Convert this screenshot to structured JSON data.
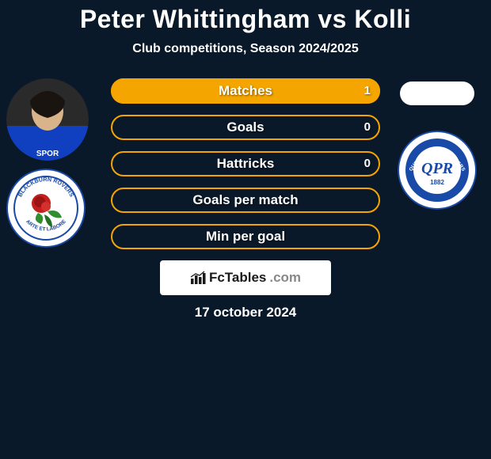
{
  "title": "Peter Whittingham vs Kolli",
  "subtitle": "Club competitions, Season 2024/2025",
  "date": "17 october 2024",
  "colors": {
    "background": "#0a1929",
    "bar_border": "#f5a500",
    "bar_fill": "#f5a500",
    "text": "#ffffff"
  },
  "bars": [
    {
      "label": "Matches",
      "left": "",
      "right": "1",
      "fill_side": "right",
      "fill_pct": 100
    },
    {
      "label": "Goals",
      "left": "",
      "right": "0",
      "fill_side": "none",
      "fill_pct": 0
    },
    {
      "label": "Hattricks",
      "left": "",
      "right": "0",
      "fill_side": "none",
      "fill_pct": 0
    },
    {
      "label": "Goals per match",
      "left": "",
      "right": "",
      "fill_side": "none",
      "fill_pct": 0
    },
    {
      "label": "Min per goal",
      "left": "",
      "right": "",
      "fill_side": "none",
      "fill_pct": 0
    }
  ],
  "watermark": {
    "brand_dark": "FcTables",
    "brand_grey": ".com"
  },
  "left_club": {
    "name": "Blackburn Rovers",
    "crest_text_top": "BLACKBURN ROVERS",
    "crest_text_bottom": "ARTE ET LABORE",
    "primary": "#1a4aa8",
    "secondary": "#ffffff",
    "green": "#2f8f2f",
    "red": "#c41e1e"
  },
  "right_club": {
    "name": "Queens Park Rangers",
    "crest_text_top": "QUEENS PARK RANGERS",
    "year": "1882",
    "primary": "#1a4aa8",
    "secondary": "#ffffff"
  }
}
